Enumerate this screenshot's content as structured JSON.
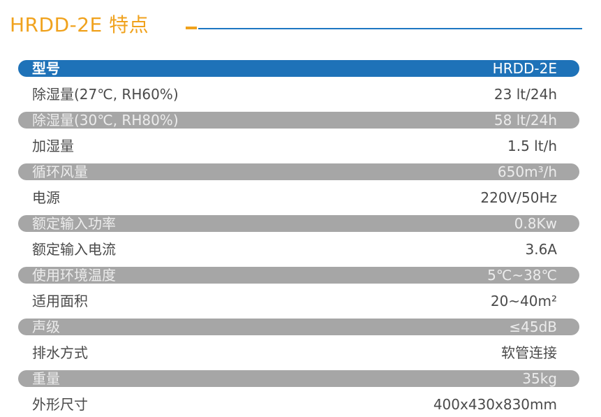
{
  "page_title": "HRDD-2E 特点",
  "colors": {
    "title": "#f0a21d",
    "header_bar": "#1e72b8",
    "shaded_bar": "#a6a6a6",
    "rule": "#1d77c2"
  },
  "table": {
    "header": {
      "label": "型号",
      "value": "HRDD-2E"
    },
    "rows": [
      {
        "label": "除湿量(27℃, RH60%)",
        "value": "23 lt/24h"
      },
      {
        "label": "除湿量(30℃, RH80%)",
        "value": "58 lt/24h"
      },
      {
        "label": "加湿量",
        "value": "1.5 lt/h"
      },
      {
        "label": "循环风量",
        "value": "650m³/h"
      },
      {
        "label": "电源",
        "value": "220V/50Hz"
      },
      {
        "label": "额定输入功率",
        "value": "0.8Kw"
      },
      {
        "label": "额定输入电流",
        "value": "3.6A"
      },
      {
        "label": "使用环境温度",
        "value": "5℃~38℃"
      },
      {
        "label": "适用面积",
        "value": "20~40m²"
      },
      {
        "label": "声级",
        "value": "≤45dB"
      },
      {
        "label": "排水方式",
        "value": "软管连接"
      },
      {
        "label": "重量",
        "value": "35kg"
      },
      {
        "label": "外形尺寸",
        "value": "400x430x830mm"
      }
    ]
  }
}
